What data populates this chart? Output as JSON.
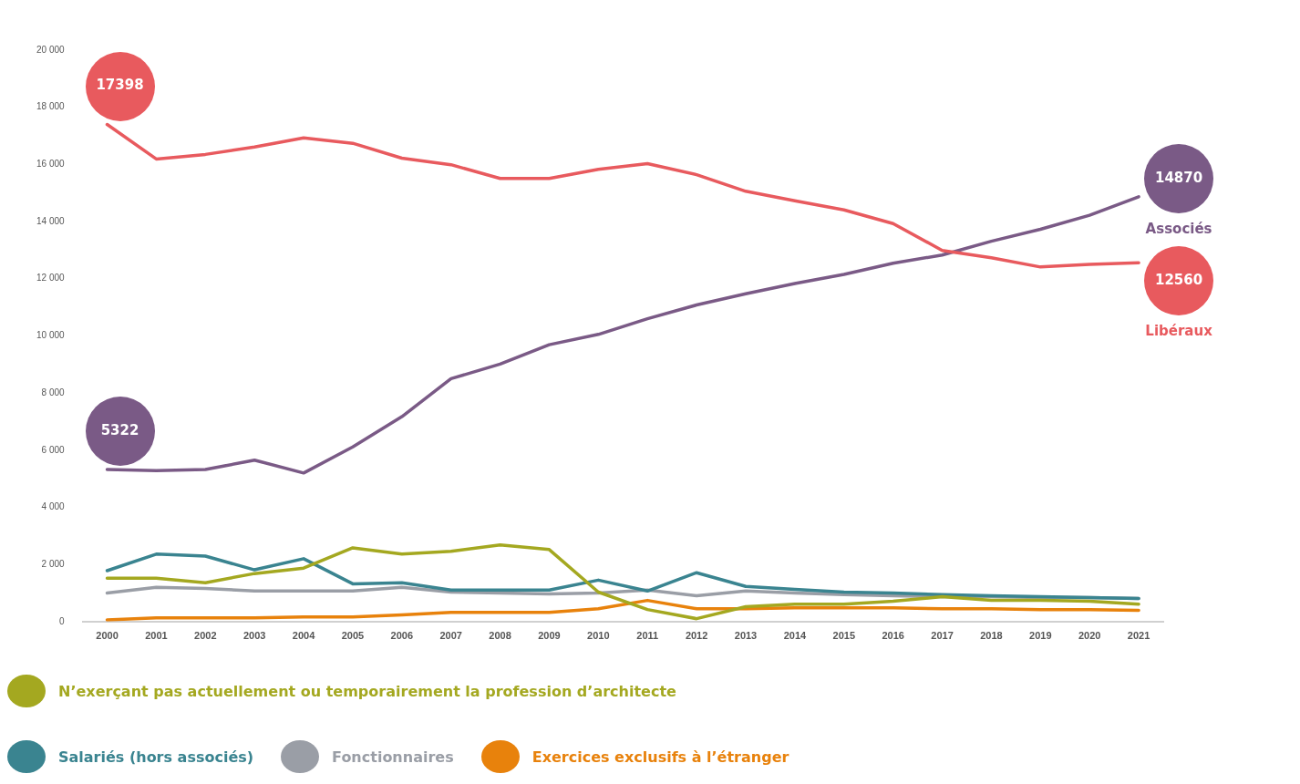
{
  "chart_data": {
    "type": "line",
    "categories": [
      "2000",
      "2001",
      "2002",
      "2003",
      "2004",
      "2005",
      "2006",
      "2007",
      "2008",
      "2009",
      "2010",
      "2011",
      "2012",
      "2013",
      "2014",
      "2015",
      "2016",
      "2017",
      "2018",
      "2019",
      "2020",
      "2021"
    ],
    "series": [
      {
        "name": "Libéraux",
        "color": "#e85a5e",
        "values": [
          17398,
          16190,
          16350,
          16610,
          16930,
          16740,
          16220,
          15990,
          15510,
          15510,
          15830,
          16030,
          15640,
          15060,
          14730,
          14410,
          13930,
          12990,
          12730,
          12410,
          12500,
          12560
        ],
        "value_labels": [
          "17398",
          null,
          null,
          null,
          null,
          null,
          null,
          null,
          null,
          null,
          null,
          null,
          null,
          null,
          null,
          null,
          null,
          null,
          null,
          null,
          null,
          "12560"
        ]
      },
      {
        "name": "Associés",
        "color": "#7a5a86",
        "values": [
          5322,
          5280,
          5320,
          5650,
          5200,
          6110,
          7170,
          8500,
          9010,
          9690,
          10050,
          10600,
          11080,
          11470,
          11830,
          12150,
          12540,
          12830,
          13310,
          13730,
          14220,
          14870
        ],
        "value_labels": [
          "5322",
          null,
          null,
          null,
          null,
          null,
          null,
          null,
          null,
          null,
          null,
          null,
          null,
          null,
          null,
          null,
          null,
          null,
          null,
          null,
          null,
          "14870"
        ]
      },
      {
        "name": "N’exerçant pas actuellement ou temporairement la profession d’architecte",
        "color": "#a4a820",
        "values": [
          1520,
          1520,
          1360,
          1680,
          1870,
          2580,
          2360,
          2460,
          2680,
          2520,
          1030,
          420,
          100,
          520,
          610,
          610,
          710,
          870,
          740,
          740,
          710,
          610
        ]
      },
      {
        "name": "Salariés (hors associés)",
        "color": "#3a8490",
        "values": [
          1780,
          2360,
          2290,
          1810,
          2200,
          1320,
          1360,
          1100,
          1100,
          1100,
          1450,
          1070,
          1710,
          1230,
          1130,
          1030,
          1000,
          940,
          900,
          870,
          840,
          810
        ]
      },
      {
        "name": "Fonctionnaires",
        "color": "#9a9ea6",
        "values": [
          1000,
          1200,
          1160,
          1070,
          1070,
          1070,
          1200,
          1030,
          1000,
          970,
          1000,
          1100,
          900,
          1070,
          1000,
          940,
          900,
          870,
          870,
          840,
          840,
          810
        ]
      },
      {
        "name": "Exercices exclusifs à l’étranger",
        "color": "#e8820c",
        "values": [
          60,
          130,
          130,
          130,
          160,
          160,
          230,
          320,
          320,
          320,
          450,
          740,
          450,
          450,
          480,
          480,
          480,
          450,
          450,
          420,
          420,
          390
        ]
      }
    ],
    "ylim": [
      0,
      20000
    ],
    "yticks": [
      {
        "value": 0,
        "label": "0"
      },
      {
        "value": 2000,
        "label": "2 000"
      },
      {
        "value": 4000,
        "label": "4 000"
      },
      {
        "value": 6000,
        "label": "6 000"
      },
      {
        "value": 8000,
        "label": "8 000"
      },
      {
        "value": 10000,
        "label": "10 000"
      },
      {
        "value": 12000,
        "label": "12 000"
      },
      {
        "value": 14000,
        "label": "14 000"
      },
      {
        "value": 16000,
        "label": "16 000"
      },
      {
        "value": 18000,
        "label": "18 000"
      },
      {
        "value": 20000,
        "label": "20 000"
      }
    ],
    "grid": false,
    "legend": "bottom",
    "marker": "none",
    "line_style": "solid"
  }
}
